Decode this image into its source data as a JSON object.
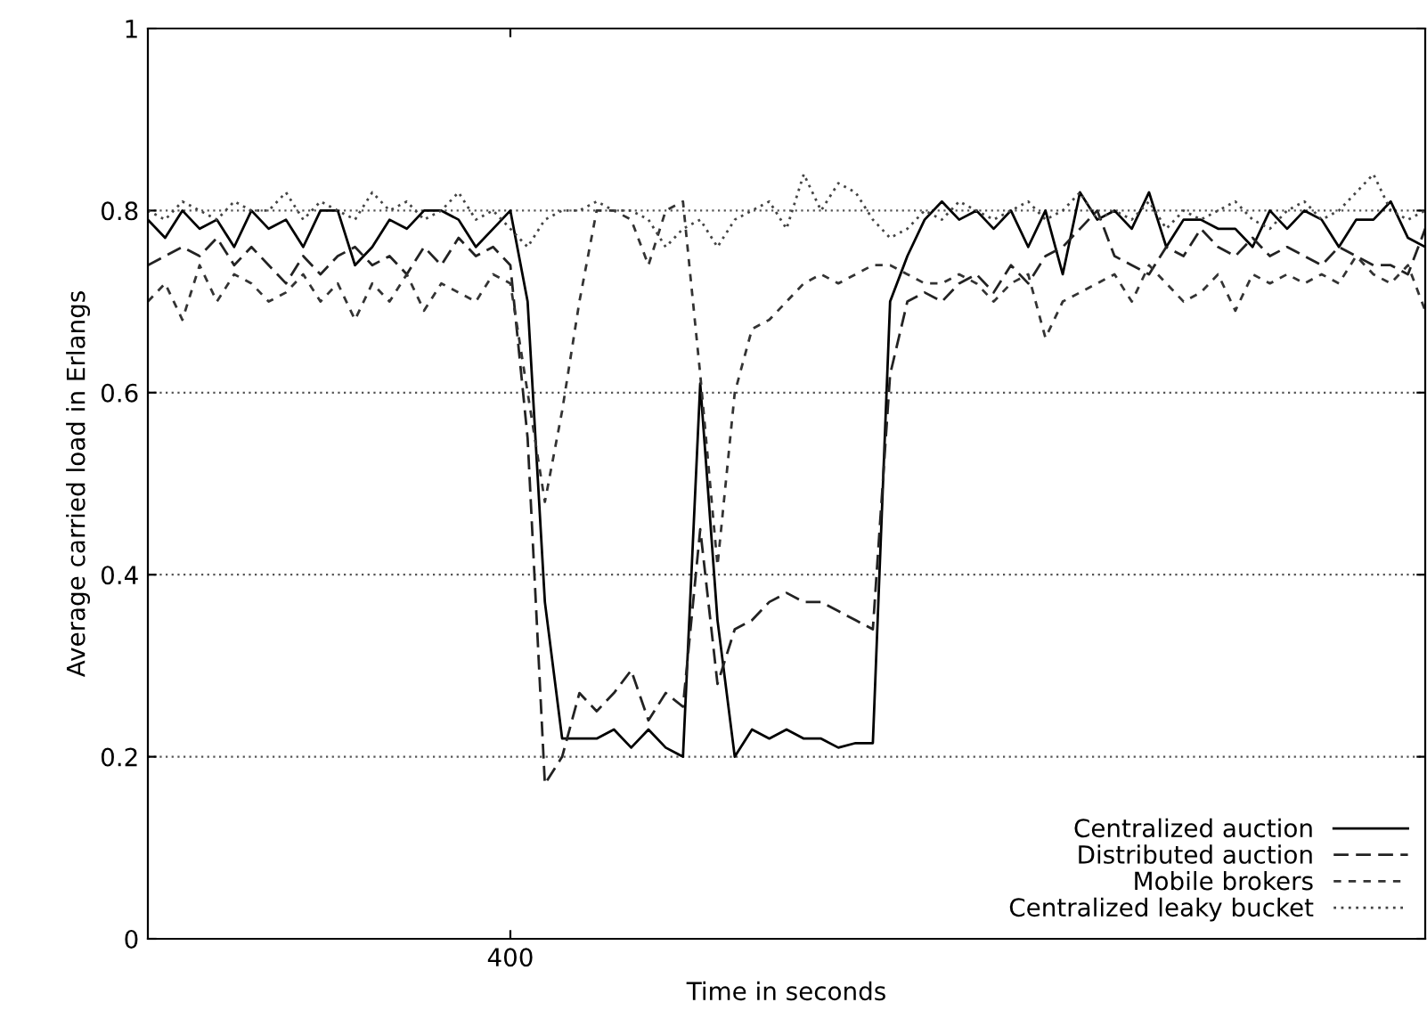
{
  "chart_data": {
    "type": "line",
    "xlabel": "Time in seconds",
    "ylabel": "Average carried load in Erlangs",
    "categories": [
      null,
      null,
      null,
      null,
      null,
      null,
      null,
      null,
      null,
      null,
      null,
      null,
      null,
      null,
      null,
      null,
      null,
      null,
      null,
      null,
      null,
      "400",
      null,
      null,
      null,
      null,
      null,
      null,
      null,
      null,
      null,
      null,
      null,
      null,
      null,
      null,
      null,
      null,
      null,
      null,
      null,
      null,
      null,
      null,
      null,
      null,
      null,
      null,
      null,
      null,
      null,
      null,
      null,
      null,
      null,
      null,
      null,
      null,
      null,
      null,
      null,
      null,
      null,
      null,
      null,
      null,
      null,
      null,
      null,
      null,
      null,
      null,
      null,
      null,
      null
    ],
    "ylim": [
      0,
      1
    ],
    "yticks": [
      0,
      0.2,
      0.4,
      0.6,
      0.8,
      1
    ],
    "grid": "y",
    "legend": "bottom right",
    "marker": "none",
    "series": [
      {
        "name": "Centralized auction",
        "color": "#000000",
        "line_style": "solid",
        "values": [
          0.79,
          0.77,
          0.8,
          0.78,
          0.79,
          0.76,
          0.8,
          0.78,
          0.79,
          0.76,
          0.8,
          0.8,
          0.74,
          0.76,
          0.79,
          0.78,
          0.8,
          0.8,
          0.79,
          0.76,
          0.78,
          0.8,
          0.7,
          0.37,
          0.22,
          0.22,
          0.22,
          0.23,
          0.21,
          0.23,
          0.21,
          0.2,
          0.61,
          0.35,
          0.2,
          0.23,
          0.22,
          0.23,
          0.22,
          0.22,
          0.21,
          0.215,
          0.215,
          0.7,
          0.75,
          0.79,
          0.81,
          0.79,
          0.8,
          0.78,
          0.8,
          0.76,
          0.8,
          0.73,
          0.82,
          0.79,
          0.8,
          0.78,
          0.82,
          0.76,
          0.79,
          0.79,
          0.78,
          0.78,
          0.76,
          0.8,
          0.78,
          0.8,
          0.79,
          0.76,
          0.79,
          0.79,
          0.81,
          0.77,
          0.76
        ]
      },
      {
        "name": "Distributed auction",
        "color": "#222222",
        "line_style": "dashed",
        "values": [
          0.74,
          0.75,
          0.76,
          0.75,
          0.77,
          0.74,
          0.76,
          0.74,
          0.72,
          0.75,
          0.73,
          0.75,
          0.76,
          0.74,
          0.75,
          0.73,
          0.76,
          0.74,
          0.77,
          0.75,
          0.76,
          0.74,
          0.55,
          0.17,
          0.2,
          0.27,
          0.25,
          0.27,
          0.295,
          0.24,
          0.27,
          0.255,
          0.45,
          0.28,
          0.34,
          0.35,
          0.37,
          0.38,
          0.37,
          0.37,
          0.36,
          0.35,
          0.34,
          0.62,
          0.7,
          0.71,
          0.7,
          0.72,
          0.73,
          0.71,
          0.74,
          0.72,
          0.75,
          0.76,
          0.78,
          0.8,
          0.75,
          0.74,
          0.73,
          0.76,
          0.75,
          0.78,
          0.76,
          0.75,
          0.77,
          0.75,
          0.76,
          0.75,
          0.74,
          0.76,
          0.75,
          0.74,
          0.74,
          0.73,
          0.78
        ]
      },
      {
        "name": "Mobile brokers",
        "color": "#333333",
        "line_style": "dashed_short",
        "values": [
          0.7,
          0.72,
          0.68,
          0.74,
          0.7,
          0.73,
          0.72,
          0.7,
          0.71,
          0.73,
          0.7,
          0.72,
          0.68,
          0.72,
          0.7,
          0.73,
          0.69,
          0.72,
          0.71,
          0.7,
          0.73,
          0.72,
          0.6,
          0.48,
          0.58,
          0.7,
          0.8,
          0.8,
          0.79,
          0.74,
          0.8,
          0.81,
          0.62,
          0.41,
          0.6,
          0.67,
          0.68,
          0.7,
          0.72,
          0.73,
          0.72,
          0.73,
          0.74,
          0.74,
          0.73,
          0.72,
          0.72,
          0.73,
          0.72,
          0.7,
          0.72,
          0.73,
          0.66,
          0.7,
          0.71,
          0.72,
          0.73,
          0.7,
          0.74,
          0.72,
          0.7,
          0.71,
          0.73,
          0.69,
          0.73,
          0.72,
          0.73,
          0.72,
          0.73,
          0.72,
          0.75,
          0.73,
          0.72,
          0.74,
          0.69
        ]
      },
      {
        "name": "Centralized leaky bucket",
        "color": "#444444",
        "line_style": "dotted",
        "values": [
          0.8,
          0.79,
          0.81,
          0.8,
          0.79,
          0.81,
          0.8,
          0.8,
          0.82,
          0.79,
          0.81,
          0.8,
          0.79,
          0.82,
          0.8,
          0.81,
          0.79,
          0.8,
          0.82,
          0.79,
          0.8,
          0.78,
          0.76,
          0.79,
          0.8,
          0.8,
          0.81,
          0.8,
          0.8,
          0.79,
          0.76,
          0.78,
          0.79,
          0.76,
          0.79,
          0.8,
          0.81,
          0.78,
          0.84,
          0.8,
          0.83,
          0.82,
          0.79,
          0.77,
          0.78,
          0.8,
          0.79,
          0.81,
          0.8,
          0.79,
          0.8,
          0.81,
          0.79,
          0.8,
          0.82,
          0.79,
          0.8,
          0.79,
          0.81,
          0.78,
          0.8,
          0.79,
          0.8,
          0.81,
          0.79,
          0.78,
          0.8,
          0.81,
          0.79,
          0.8,
          0.82,
          0.84,
          0.8,
          0.79,
          0.8
        ]
      }
    ]
  }
}
